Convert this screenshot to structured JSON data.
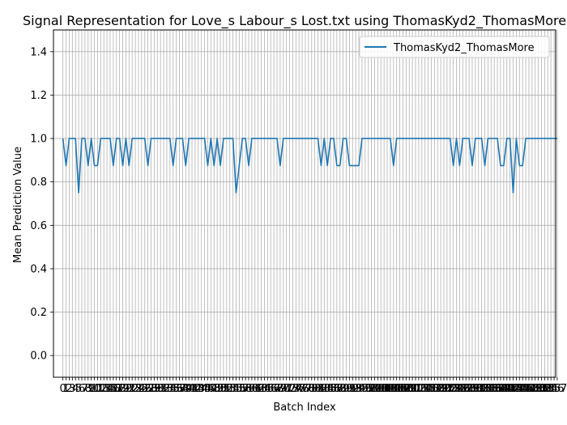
{
  "chart_data": {
    "type": "line",
    "title": "Signal Representation for Love_s Labour_s Lost.txt using ThomasKyd2_ThomasMore",
    "xlabel": "Batch Index",
    "ylabel": "Mean Prediction Value",
    "xlim": [
      -3,
      156.5
    ],
    "ylim": [
      -0.1,
      1.5
    ],
    "yticks": [
      0.0,
      0.2,
      0.4,
      0.6,
      0.8,
      1.0,
      1.2,
      1.4
    ],
    "ytick_labels": [
      "0.0",
      "0.2",
      "0.4",
      "0.6",
      "0.8",
      "1.0",
      "1.2",
      "1.4"
    ],
    "grid": true,
    "legend_position": "top-right",
    "colors": {
      "series": "#1f77b4",
      "grid": "#b0b0b0"
    },
    "series": [
      {
        "name": "ThomasKyd2_ThomasMore",
        "values": [
          1,
          0.875,
          1,
          1,
          1,
          0.75,
          1,
          1,
          0.875,
          1,
          0.875,
          0.875,
          1,
          1,
          1,
          1,
          0.875,
          1,
          1,
          0.875,
          1,
          0.875,
          1,
          1,
          1,
          1,
          1,
          0.875,
          1,
          1,
          1,
          1,
          1,
          1,
          1,
          0.875,
          1,
          1,
          1,
          0.875,
          1,
          1,
          1,
          1,
          1,
          1,
          0.875,
          1,
          0.875,
          1,
          0.875,
          1,
          1,
          1,
          1,
          0.75,
          0.875,
          1,
          1,
          0.875,
          1,
          1,
          1,
          1,
          1,
          1,
          1,
          1,
          1,
          0.875,
          1,
          1,
          1,
          1,
          1,
          1,
          1,
          1,
          1,
          1,
          1,
          1,
          0.875,
          1,
          0.875,
          1,
          1,
          0.875,
          0.875,
          1,
          1,
          0.875,
          0.875,
          0.875,
          0.875,
          1,
          1,
          1,
          1,
          1,
          1,
          1,
          1,
          1,
          1,
          0.875,
          1,
          1,
          1,
          1,
          1,
          1,
          1,
          1,
          1,
          1,
          1,
          1,
          1,
          1,
          1,
          1,
          1,
          1,
          0.875,
          1,
          0.875,
          1,
          1,
          1,
          0.875,
          1,
          1,
          1,
          0.875,
          1,
          1,
          1,
          1,
          0.875,
          0.875,
          1,
          1,
          0.75,
          1,
          0.875,
          0.875,
          1,
          1,
          1,
          1,
          1,
          1,
          1,
          1,
          1,
          1,
          1
        ]
      }
    ]
  }
}
